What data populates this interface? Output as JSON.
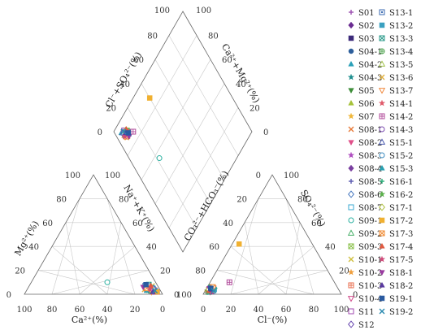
{
  "chart_data": {
    "type": "scatter",
    "title": "",
    "subplots": [
      "cation-triangle",
      "anion-triangle",
      "diamond"
    ],
    "axes": {
      "cation_x": "Ca²⁺(%)",
      "cation_y": "Mg²⁺(%)",
      "anion_x": "Cl⁻(%)",
      "anion_y": "SO₄²⁻(%)",
      "diamond_left_lower": "Na⁺+K⁺(%)",
      "diamond_left_upper": "Cl⁻+SO₄²⁻(%)",
      "diamond_right_upper": "Ca²⁺+Mg²⁺(%)",
      "diamond_right_lower": "CO₃²⁻+HCO₃⁻(%)"
    },
    "ticks": [
      "0",
      "20",
      "40",
      "60",
      "80",
      "100"
    ],
    "legend_position": "right",
    "series": [
      {
        "name": "S01",
        "color": "#9b4fb0",
        "marker": "plus",
        "cation": [
          4,
          6
        ],
        "anion": [
          3,
          4
        ],
        "diamond": [
          93,
          7
        ]
      },
      {
        "name": "S02",
        "color": "#6a2c91",
        "marker": "diamond",
        "cation": [
          6,
          4
        ],
        "anion": [
          2,
          5
        ],
        "diamond": [
          92,
          8
        ]
      },
      {
        "name": "S03",
        "color": "#3d2a7a",
        "marker": "square",
        "cation": [
          5,
          3
        ],
        "anion": [
          4,
          3
        ],
        "diamond": [
          92,
          9
        ]
      },
      {
        "name": "S04-1",
        "color": "#2c5e9b",
        "marker": "circle",
        "cation": [
          7,
          4
        ],
        "anion": [
          2,
          3
        ],
        "diamond": [
          90,
          6
        ]
      },
      {
        "name": "S04-2",
        "color": "#2aa0b8",
        "marker": "triangle",
        "cation": [
          3,
          5
        ],
        "anion": [
          3,
          2
        ],
        "diamond": [
          94,
          5
        ]
      },
      {
        "name": "S04-3",
        "color": "#1f8f8f",
        "marker": "star",
        "cation": [
          6,
          2
        ],
        "anion": [
          5,
          4
        ],
        "diamond": [
          91,
          8
        ]
      },
      {
        "name": "S05",
        "color": "#3e8e3a",
        "marker": "triangle-down",
        "cation": [
          8,
          5
        ],
        "anion": [
          2,
          2
        ],
        "diamond": [
          89,
          7
        ]
      },
      {
        "name": "S06",
        "color": "#a6c23a",
        "marker": "triangle",
        "cation": [
          5,
          6
        ],
        "anion": [
          4,
          5
        ],
        "diamond": [
          92,
          10
        ]
      },
      {
        "name": "S07",
        "color": "#f0b73a",
        "marker": "star",
        "cation": [
          9,
          3
        ],
        "anion": [
          3,
          3
        ],
        "diamond": [
          90,
          8
        ]
      },
      {
        "name": "S08-1",
        "color": "#e87b3a",
        "marker": "x",
        "cation": [
          7,
          6
        ],
        "anion": [
          2,
          4
        ],
        "diamond": [
          91,
          6
        ]
      },
      {
        "name": "S08-2",
        "color": "#e0508a",
        "marker": "triangle-down",
        "cation": [
          4,
          4
        ],
        "anion": [
          5,
          2
        ],
        "diamond": [
          93,
          7
        ]
      },
      {
        "name": "S08-3",
        "color": "#b04fc0",
        "marker": "star",
        "cation": [
          10,
          4
        ],
        "anion": [
          3,
          5
        ],
        "diamond": [
          88,
          9
        ]
      },
      {
        "name": "S08-4",
        "color": "#7a3fa0",
        "marker": "diamond",
        "cation": [
          6,
          7
        ],
        "anion": [
          4,
          3
        ],
        "diamond": [
          90,
          8
        ]
      },
      {
        "name": "S08-5",
        "color": "#5a5ab0",
        "marker": "plus",
        "cation": [
          8,
          2
        ],
        "anion": [
          2,
          5
        ],
        "diamond": [
          91,
          9
        ]
      },
      {
        "name": "S08-6",
        "color": "#4a7ac0",
        "marker": "diamond-open",
        "cation": [
          5,
          5
        ],
        "anion": [
          6,
          3
        ],
        "diamond": [
          92,
          6
        ]
      },
      {
        "name": "S08-7",
        "color": "#3aa8d0",
        "marker": "square-open",
        "cation": [
          7,
          3
        ],
        "anion": [
          3,
          2
        ],
        "diamond": [
          90,
          7
        ]
      },
      {
        "name": "S09-1",
        "color": "#2ab0a0",
        "marker": "circle-open",
        "cation": [
          35,
          10
        ],
        "anion": [
          4,
          4
        ],
        "diamond": [
          56,
          22
        ]
      },
      {
        "name": "S09-2",
        "color": "#4ab06a",
        "marker": "triangle-open",
        "cation": [
          6,
          4
        ],
        "anion": [
          2,
          3
        ],
        "diamond": [
          89,
          8
        ]
      },
      {
        "name": "S09-3",
        "color": "#8ac04a",
        "marker": "square-x",
        "cation": [
          9,
          5
        ],
        "anion": [
          5,
          4
        ],
        "diamond": [
          91,
          10
        ]
      },
      {
        "name": "S10-1",
        "color": "#d0c040",
        "marker": "x",
        "cation": [
          4,
          7
        ],
        "anion": [
          3,
          6
        ],
        "diamond": [
          92,
          9
        ]
      },
      {
        "name": "S10-2",
        "color": "#f0a040",
        "marker": "star",
        "cation": [
          10,
          6
        ],
        "anion": [
          2,
          2
        ],
        "diamond": [
          88,
          7
        ]
      },
      {
        "name": "S10-3",
        "color": "#e86a4a",
        "marker": "square-plus",
        "cation": [
          6,
          3
        ],
        "anion": [
          5,
          5
        ],
        "diamond": [
          89,
          10
        ]
      },
      {
        "name": "S10-4",
        "color": "#d04a8a",
        "marker": "triangle-down-open",
        "cation": [
          8,
          4
        ],
        "anion": [
          4,
          2
        ],
        "diamond": [
          91,
          6
        ]
      },
      {
        "name": "S11",
        "color": "#a04ab0",
        "marker": "square-open",
        "cation": [
          5,
          2
        ],
        "anion": [
          3,
          3
        ],
        "diamond": [
          93,
          8
        ]
      },
      {
        "name": "S12",
        "color": "#6a4ab0",
        "marker": "diamond-open",
        "cation": [
          7,
          5
        ],
        "anion": [
          2,
          4
        ],
        "diamond": [
          90,
          9
        ]
      },
      {
        "name": "S13-1",
        "color": "#3a6ab0",
        "marker": "square-dot",
        "cation": [
          9,
          7
        ],
        "anion": [
          4,
          5
        ],
        "diamond": [
          89,
          7
        ]
      },
      {
        "name": "S13-2",
        "color": "#3aa0c0",
        "marker": "square",
        "cation": [
          4,
          3
        ],
        "anion": [
          6,
          4
        ],
        "diamond": [
          92,
          8
        ]
      },
      {
        "name": "S13-3",
        "color": "#2a9a8a",
        "marker": "square-x",
        "cation": [
          6,
          8
        ],
        "anion": [
          3,
          2
        ],
        "diamond": [
          90,
          10
        ]
      },
      {
        "name": "S13-4",
        "color": "#4aa04a",
        "marker": "circle-plus",
        "cation": [
          8,
          3
        ],
        "anion": [
          2,
          6
        ],
        "diamond": [
          91,
          7
        ]
      },
      {
        "name": "S13-5",
        "color": "#a0c04a",
        "marker": "triangle-open",
        "cation": [
          5,
          6
        ],
        "anion": [
          5,
          3
        ],
        "diamond": [
          92,
          9
        ]
      },
      {
        "name": "S13-6",
        "color": "#e0b040",
        "marker": "x",
        "cation": [
          11,
          4
        ],
        "anion": [
          3,
          4
        ],
        "diamond": [
          88,
          8
        ]
      },
      {
        "name": "S13-7",
        "color": "#f08a40",
        "marker": "triangle-down-open",
        "cation": [
          7,
          2
        ],
        "anion": [
          4,
          5
        ],
        "diamond": [
          90,
          6
        ]
      },
      {
        "name": "S14-1",
        "color": "#e05a6a",
        "marker": "star",
        "cation": [
          6,
          5
        ],
        "anion": [
          2,
          3
        ],
        "diamond": [
          91,
          10
        ]
      },
      {
        "name": "S14-2",
        "color": "#b04a9a",
        "marker": "square-plus",
        "cation": [
          3,
          2
        ],
        "anion": [
          14,
          10
        ],
        "diamond": [
          86,
          14
        ]
      },
      {
        "name": "S14-3",
        "color": "#7a4ab0",
        "marker": "circle-open",
        "cation": [
          9,
          6
        ],
        "anion": [
          3,
          6
        ],
        "diamond": [
          89,
          9
        ]
      },
      {
        "name": "S15-1",
        "color": "#4a5ab0",
        "marker": "triangle-open",
        "cation": [
          4,
          5
        ],
        "anion": [
          5,
          2
        ],
        "diamond": [
          93,
          6
        ]
      },
      {
        "name": "S15-2",
        "color": "#3a8ac0",
        "marker": "circle-open",
        "cation": [
          7,
          7
        ],
        "anion": [
          2,
          5
        ],
        "diamond": [
          90,
          8
        ]
      },
      {
        "name": "S15-3",
        "color": "#2aa0b0",
        "marker": "triangle",
        "cation": [
          10,
          3
        ],
        "anion": [
          4,
          3
        ],
        "diamond": [
          88,
          10
        ]
      },
      {
        "name": "S16-1",
        "color": "#2ab07a",
        "marker": "plus",
        "cation": [
          5,
          4
        ],
        "anion": [
          6,
          5
        ],
        "diamond": [
          92,
          7
        ]
      },
      {
        "name": "S16-2",
        "color": "#5ab04a",
        "marker": "star",
        "cation": [
          8,
          6
        ],
        "anion": [
          3,
          2
        ],
        "diamond": [
          90,
          9
        ]
      },
      {
        "name": "S17-1",
        "color": "#b0c040",
        "marker": "diamond-open",
        "cation": [
          6,
          3
        ],
        "anion": [
          2,
          4
        ],
        "diamond": [
          91,
          8
        ]
      },
      {
        "name": "S17-2",
        "color": "#f0b030",
        "marker": "square",
        "cation": [
          3,
          2
        ],
        "anion": [
          5,
          42
        ],
        "diamond": [
          88,
          40
        ]
      },
      {
        "name": "S17-3",
        "color": "#f08a30",
        "marker": "square-x",
        "cation": [
          9,
          5
        ],
        "anion": [
          4,
          6
        ],
        "diamond": [
          89,
          7
        ]
      },
      {
        "name": "S17-4",
        "color": "#e05a40",
        "marker": "triangle",
        "cation": [
          5,
          7
        ],
        "anion": [
          3,
          3
        ],
        "diamond": [
          92,
          10
        ]
      },
      {
        "name": "S17-5",
        "color": "#d04a7a",
        "marker": "star",
        "cation": [
          7,
          4
        ],
        "anion": [
          5,
          2
        ],
        "diamond": [
          90,
          6
        ]
      },
      {
        "name": "S18-1",
        "color": "#9a3aa0",
        "marker": "triangle-down",
        "cation": [
          11,
          6
        ],
        "anion": [
          2,
          5
        ],
        "diamond": [
          87,
          9
        ]
      },
      {
        "name": "S18-2",
        "color": "#5a3aa0",
        "marker": "triangle",
        "cation": [
          6,
          2
        ],
        "anion": [
          4,
          4
        ],
        "diamond": [
          91,
          8
        ]
      },
      {
        "name": "S19-1",
        "color": "#2a5aa0",
        "marker": "square",
        "cation": [
          8,
          8
        ],
        "anion": [
          3,
          5
        ],
        "diamond": [
          89,
          10
        ]
      },
      {
        "name": "S19-2",
        "color": "#2a8ab0",
        "marker": "x",
        "cation": [
          4,
          3
        ],
        "anion": [
          6,
          3
        ],
        "diamond": [
          93,
          7
        ]
      }
    ]
  }
}
